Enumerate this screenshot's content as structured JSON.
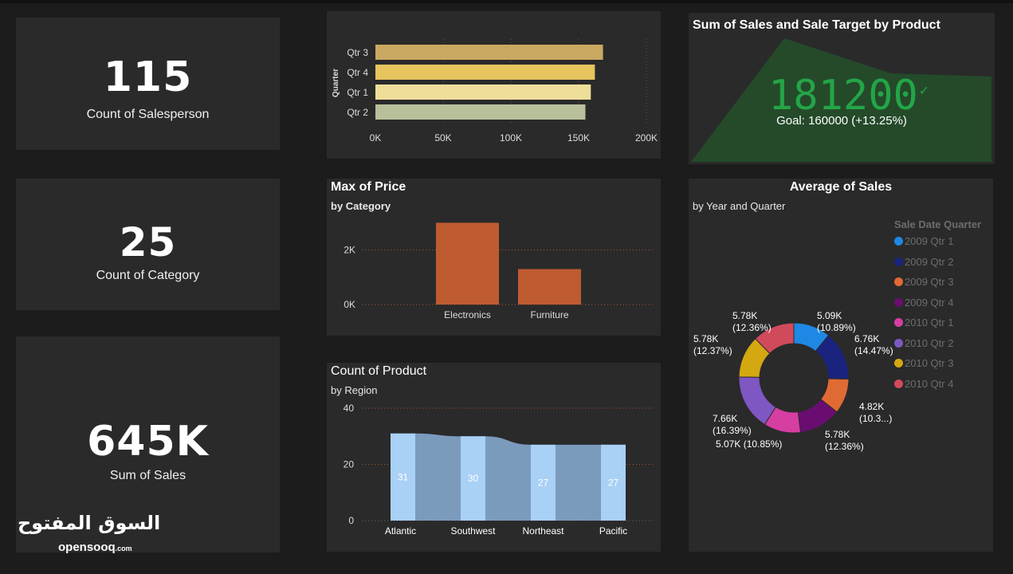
{
  "kpis": [
    {
      "value": "115",
      "label": "Count of Salesperson"
    },
    {
      "value": "25",
      "label": "Count of Category"
    },
    {
      "value": "645K",
      "label": "Sum of Sales"
    }
  ],
  "gauge": {
    "title": "Sum of Sales and Sale Target by Product",
    "value": "181200",
    "check": "✓",
    "goal_text": "Goal: 160000 (+13.25%)"
  },
  "watermark": {
    "arabic": "السوق المفتوح",
    "latin": "opensooq",
    "latin_suffix": ".com"
  },
  "chart_data": [
    {
      "type": "bar",
      "orientation": "horizontal",
      "title": "",
      "ylabel": "Quarter",
      "categories": [
        "Qtr 3",
        "Qtr 4",
        "Qtr 1",
        "Qtr 2"
      ],
      "values": [
        168000,
        162000,
        159000,
        155000
      ],
      "xlim": [
        0,
        200000
      ],
      "xticks": [
        0,
        50000,
        100000,
        150000,
        200000
      ],
      "xtick_labels": [
        "0K",
        "50K",
        "100K",
        "150K",
        "200K"
      ],
      "colors": [
        "#c9a961",
        "#e6c45e",
        "#efde99",
        "#b8c09a"
      ]
    },
    {
      "type": "bar",
      "title": "Max of Price",
      "subtitle": "by Category",
      "categories": [
        "Electronics",
        "Furniture"
      ],
      "values": [
        3000,
        1300
      ],
      "ylim": [
        0,
        3100
      ],
      "yticks": [
        0,
        2000
      ],
      "ytick_labels": [
        "0K",
        "2K"
      ],
      "color": "#bf5b30"
    },
    {
      "type": "bar",
      "title": "Count of Product",
      "subtitle": "by Region",
      "categories": [
        "Atlantic",
        "Southwest",
        "Northeast",
        "Pacific"
      ],
      "values": [
        31,
        30,
        27,
        27
      ],
      "data_labels": [
        "31",
        "30",
        "27",
        "27"
      ],
      "ylim": [
        0,
        40
      ],
      "yticks": [
        0,
        20,
        40
      ],
      "ytick_labels": [
        "0",
        "20",
        "40"
      ],
      "color": "#a9d0f5",
      "ribbon_color": "#7b9bbd"
    },
    {
      "type": "pie",
      "title": "Average of Sales",
      "subtitle": "by Year and Quarter",
      "legend_title": "Sale Date Quarter",
      "legend_position": "right",
      "labels": [
        "2009 Qtr 1",
        "2009 Qtr 2",
        "2009 Qtr 3",
        "2009 Qtr 4",
        "2010 Qtr 1",
        "2010 Qtr 2",
        "2010 Qtr 3",
        "2010 Qtr 4"
      ],
      "values": [
        5090,
        6760,
        4820,
        5780,
        5070,
        7660,
        5780,
        5780
      ],
      "percents": [
        10.89,
        14.47,
        10.3,
        12.36,
        10.85,
        16.39,
        12.37,
        12.36
      ],
      "slice_labels": [
        [
          "5.09K",
          "(10.89%)"
        ],
        [
          "6.76K",
          "(14.47%)"
        ],
        [
          "4.82K",
          "(10.3...)"
        ],
        [
          "5.78K",
          "(12.36%)"
        ],
        [
          "5.07K (10.85%)"
        ],
        [
          "7.66K",
          "(16.39%)"
        ],
        [
          "5.78K",
          "(12.37%)"
        ],
        [
          "5.78K",
          "(12.36%)"
        ]
      ],
      "colors": [
        "#1e88e5",
        "#1a237e",
        "#e06a34",
        "#6a0d72",
        "#d63ea2",
        "#7e57c2",
        "#d4a810",
        "#d14a5c"
      ]
    }
  ]
}
